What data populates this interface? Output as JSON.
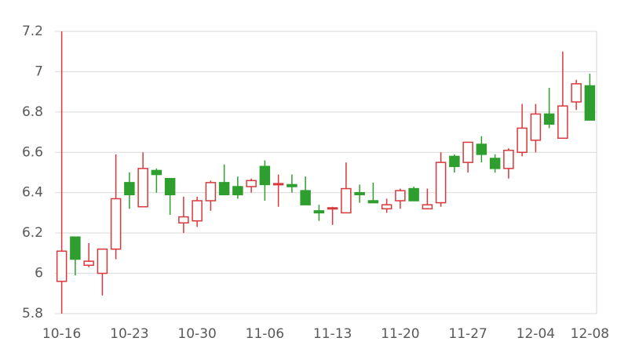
{
  "chart_data": {
    "type": "candlestick",
    "categories": [
      "10-16",
      null,
      null,
      null,
      null,
      "10-23",
      null,
      null,
      null,
      null,
      "10-30",
      null,
      null,
      null,
      null,
      "11-06",
      null,
      null,
      null,
      null,
      "11-13",
      null,
      null,
      null,
      null,
      "11-20",
      null,
      null,
      null,
      null,
      "11-27",
      null,
      null,
      null,
      null,
      "12-04",
      null,
      null,
      null,
      "12-08"
    ],
    "open": [
      5.96,
      6.18,
      6.04,
      6.0,
      6.12,
      6.45,
      6.33,
      6.51,
      6.47,
      6.25,
      6.26,
      6.36,
      6.45,
      6.43,
      6.43,
      6.53,
      6.44,
      6.44,
      6.41,
      6.31,
      6.32,
      6.3,
      6.4,
      6.36,
      6.32,
      6.36,
      6.42,
      6.32,
      6.35,
      6.58,
      6.55,
      6.64,
      6.57,
      6.52,
      6.6,
      6.66,
      6.79,
      6.67,
      6.85,
      6.93
    ],
    "high": [
      7.2,
      6.18,
      6.15,
      6.12,
      6.59,
      6.5,
      6.6,
      6.52,
      6.47,
      6.38,
      6.38,
      6.46,
      6.54,
      6.48,
      6.47,
      6.56,
      6.49,
      6.49,
      6.48,
      6.34,
      6.33,
      6.55,
      6.44,
      6.45,
      6.37,
      6.42,
      6.43,
      6.42,
      6.6,
      6.59,
      6.65,
      6.68,
      6.59,
      6.62,
      6.84,
      6.84,
      6.92,
      7.1,
      6.96,
      6.99
    ],
    "low": [
      5.8,
      5.99,
      6.03,
      5.89,
      6.07,
      6.32,
      6.33,
      6.4,
      6.29,
      6.2,
      6.23,
      6.31,
      6.39,
      6.37,
      6.4,
      6.36,
      6.33,
      6.4,
      6.34,
      6.26,
      6.24,
      6.3,
      6.35,
      6.35,
      6.3,
      6.32,
      6.36,
      6.32,
      6.33,
      6.5,
      6.5,
      6.55,
      6.5,
      6.47,
      6.58,
      6.6,
      6.72,
      6.67,
      6.81,
      6.76
    ],
    "close": [
      6.11,
      6.07,
      6.06,
      6.12,
      6.37,
      6.39,
      6.52,
      6.49,
      6.39,
      6.28,
      6.36,
      6.45,
      6.39,
      6.39,
      6.46,
      6.44,
      6.445,
      6.43,
      6.34,
      6.3,
      6.325,
      6.42,
      6.39,
      6.35,
      6.34,
      6.41,
      6.36,
      6.34,
      6.55,
      6.53,
      6.65,
      6.59,
      6.52,
      6.61,
      6.72,
      6.79,
      6.74,
      6.83,
      6.94,
      6.76
    ],
    "up_color": "#d9383a",
    "down_color": "#2e9e2e",
    "ylim": [
      5.8,
      7.2
    ],
    "yticks": [
      5.8,
      6,
      6.2,
      6.4,
      6.6,
      6.8,
      7,
      7.2
    ],
    "grid": true
  }
}
